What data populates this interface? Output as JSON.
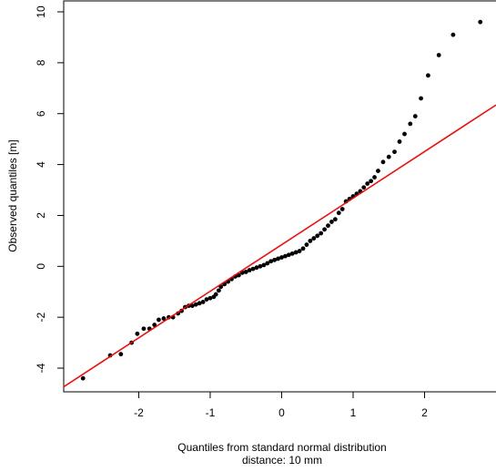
{
  "chart_data": {
    "type": "scatter",
    "x_label": "Quantiles from standard normal distribution",
    "subtitle": "distance: 10 mm",
    "y_label": "Observed quantiles [m]",
    "xlim": [
      -3.05,
      3.0
    ],
    "ylim": [
      -4.93,
      10.43
    ],
    "xticks": [
      -2,
      -1,
      0,
      1,
      2
    ],
    "yticks": [
      -4,
      -2,
      0,
      2,
      4,
      6,
      8,
      10
    ],
    "color": "#000000",
    "x": [
      -2.78,
      -2.4,
      -2.25,
      -2.1,
      -2.02,
      -1.93,
      -1.85,
      -1.78,
      -1.72,
      -1.65,
      -1.58,
      -1.52,
      -1.45,
      -1.4,
      -1.35,
      -1.3,
      -1.25,
      -1.2,
      -1.15,
      -1.1,
      -1.05,
      -1.0,
      -0.95,
      -0.92,
      -0.88,
      -0.85,
      -0.8,
      -0.75,
      -0.7,
      -0.65,
      -0.6,
      -0.55,
      -0.5,
      -0.45,
      -0.4,
      -0.35,
      -0.3,
      -0.25,
      -0.2,
      -0.15,
      -0.1,
      -0.05,
      0.0,
      0.05,
      0.1,
      0.15,
      0.2,
      0.25,
      0.3,
      0.35,
      0.4,
      0.45,
      0.5,
      0.55,
      0.6,
      0.65,
      0.7,
      0.75,
      0.8,
      0.85,
      0.9,
      0.95,
      1.0,
      1.05,
      1.1,
      1.15,
      1.2,
      1.25,
      1.3,
      1.35,
      1.42,
      1.5,
      1.58,
      1.65,
      1.72,
      1.8,
      1.87,
      1.95,
      2.05,
      2.2,
      2.4,
      2.78
    ],
    "values": [
      -4.4,
      -3.5,
      -3.45,
      -3.0,
      -2.65,
      -2.45,
      -2.45,
      -2.3,
      -2.1,
      -2.05,
      -2.0,
      -2.0,
      -1.85,
      -1.75,
      -1.6,
      -1.55,
      -1.55,
      -1.5,
      -1.45,
      -1.4,
      -1.3,
      -1.25,
      -1.2,
      -1.1,
      -0.95,
      -0.8,
      -0.7,
      -0.6,
      -0.5,
      -0.4,
      -0.35,
      -0.25,
      -0.22,
      -0.15,
      -0.1,
      -0.05,
      0.0,
      0.05,
      0.12,
      0.2,
      0.25,
      0.3,
      0.35,
      0.4,
      0.45,
      0.5,
      0.55,
      0.6,
      0.7,
      0.85,
      1.0,
      1.1,
      1.2,
      1.3,
      1.45,
      1.6,
      1.75,
      1.85,
      2.1,
      2.25,
      2.55,
      2.65,
      2.75,
      2.85,
      2.95,
      3.1,
      3.25,
      3.35,
      3.5,
      3.75,
      4.1,
      4.3,
      4.5,
      4.9,
      5.2,
      5.6,
      5.9,
      6.6,
      7.5,
      8.3,
      9.1,
      9.6
    ],
    "abline": {
      "intercept": 0.85,
      "slope": 1.83,
      "color": "#ff0000"
    }
  }
}
